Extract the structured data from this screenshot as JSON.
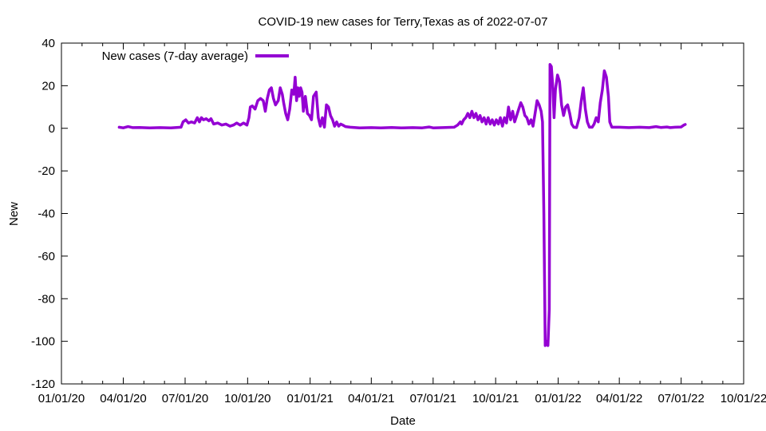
{
  "chart_data": {
    "type": "line",
    "title": "COVID-19 new cases for Terry,Texas as of 2022-07-07",
    "xlabel": "Date",
    "ylabel": "New",
    "xlim": [
      "2020-01-01",
      "2022-10-01"
    ],
    "ylim": [
      -120,
      40
    ],
    "x_ticks": [
      "2020-01-01",
      "2020-04-01",
      "2020-07-01",
      "2020-10-01",
      "2021-01-01",
      "2021-04-01",
      "2021-07-01",
      "2021-10-01",
      "2022-01-01",
      "2022-04-01",
      "2022-07-01",
      "2022-10-01"
    ],
    "x_tick_labels": [
      "01/01/20",
      "04/01/20",
      "07/01/20",
      "10/01/20",
      "01/01/21",
      "04/01/21",
      "07/01/21",
      "10/01/21",
      "01/01/22",
      "04/01/22",
      "07/01/22",
      "10/01/22"
    ],
    "y_ticks": [
      40,
      20,
      0,
      -20,
      -40,
      -60,
      -80,
      -100,
      -120
    ],
    "y_tick_labels": [
      "40",
      "20",
      "0",
      "-20",
      "-40",
      "-60",
      "-80",
      "-100",
      "-120"
    ],
    "grid": false,
    "legend": "top-left",
    "series": [
      {
        "name": "New cases (7-day average)",
        "color": "#9400d3",
        "points": [
          [
            "2020-03-26",
            0.5
          ],
          [
            "2020-04-01",
            0.2
          ],
          [
            "2020-04-08",
            0.8
          ],
          [
            "2020-04-15",
            0.3
          ],
          [
            "2020-04-25",
            0.4
          ],
          [
            "2020-05-10",
            0.2
          ],
          [
            "2020-05-25",
            0.3
          ],
          [
            "2020-06-10",
            0.2
          ],
          [
            "2020-06-25",
            0.5
          ],
          [
            "2020-06-28",
            3
          ],
          [
            "2020-07-02",
            4
          ],
          [
            "2020-07-06",
            2.5
          ],
          [
            "2020-07-10",
            3
          ],
          [
            "2020-07-15",
            2.5
          ],
          [
            "2020-07-19",
            5
          ],
          [
            "2020-07-22",
            3
          ],
          [
            "2020-07-25",
            5
          ],
          [
            "2020-07-28",
            4
          ],
          [
            "2020-08-01",
            4.5
          ],
          [
            "2020-08-05",
            3.5
          ],
          [
            "2020-08-08",
            4.5
          ],
          [
            "2020-08-12",
            2
          ],
          [
            "2020-08-18",
            2.5
          ],
          [
            "2020-08-24",
            1.5
          ],
          [
            "2020-08-30",
            2
          ],
          [
            "2020-09-05",
            1
          ],
          [
            "2020-09-10",
            1.5
          ],
          [
            "2020-09-15",
            2.5
          ],
          [
            "2020-09-20",
            1.5
          ],
          [
            "2020-09-25",
            2.5
          ],
          [
            "2020-09-30",
            1.5
          ],
          [
            "2020-10-03",
            5
          ],
          [
            "2020-10-05",
            10
          ],
          [
            "2020-10-08",
            10.5
          ],
          [
            "2020-10-12",
            9
          ],
          [
            "2020-10-16",
            13
          ],
          [
            "2020-10-20",
            14
          ],
          [
            "2020-10-24",
            13
          ],
          [
            "2020-10-27",
            8
          ],
          [
            "2020-10-30",
            14
          ],
          [
            "2020-11-02",
            18
          ],
          [
            "2020-11-05",
            19
          ],
          [
            "2020-11-08",
            14
          ],
          [
            "2020-11-11",
            11
          ],
          [
            "2020-11-15",
            13
          ],
          [
            "2020-11-18",
            19
          ],
          [
            "2020-11-21",
            16
          ],
          [
            "2020-11-23",
            12
          ],
          [
            "2020-11-26",
            7
          ],
          [
            "2020-11-29",
            4
          ],
          [
            "2020-12-02",
            9
          ],
          [
            "2020-12-05",
            18
          ],
          [
            "2020-12-08",
            16
          ],
          [
            "2020-12-10",
            24
          ],
          [
            "2020-12-12",
            13
          ],
          [
            "2020-12-14",
            19
          ],
          [
            "2020-12-16",
            15
          ],
          [
            "2020-12-18",
            19
          ],
          [
            "2020-12-20",
            17
          ],
          [
            "2020-12-22",
            8
          ],
          [
            "2020-12-25",
            15
          ],
          [
            "2020-12-28",
            7
          ],
          [
            "2020-12-31",
            6
          ],
          [
            "2021-01-03",
            4
          ],
          [
            "2021-01-06",
            15
          ],
          [
            "2021-01-10",
            17
          ],
          [
            "2021-01-13",
            5
          ],
          [
            "2021-01-16",
            1
          ],
          [
            "2021-01-19",
            5
          ],
          [
            "2021-01-22",
            0.5
          ],
          [
            "2021-01-25",
            11
          ],
          [
            "2021-01-28",
            10
          ],
          [
            "2021-01-31",
            6
          ],
          [
            "2021-02-03",
            4
          ],
          [
            "2021-02-06",
            1
          ],
          [
            "2021-02-09",
            3
          ],
          [
            "2021-02-12",
            1
          ],
          [
            "2021-02-15",
            2
          ],
          [
            "2021-02-18",
            1.5
          ],
          [
            "2021-02-22",
            0.8
          ],
          [
            "2021-03-01",
            0.5
          ],
          [
            "2021-03-15",
            0.2
          ],
          [
            "2021-04-01",
            0.3
          ],
          [
            "2021-04-15",
            0.2
          ],
          [
            "2021-05-01",
            0.4
          ],
          [
            "2021-05-15",
            0.2
          ],
          [
            "2021-06-01",
            0.3
          ],
          [
            "2021-06-15",
            0.2
          ],
          [
            "2021-06-25",
            0.6
          ],
          [
            "2021-07-01",
            0.2
          ],
          [
            "2021-07-15",
            0.3
          ],
          [
            "2021-08-01",
            0.5
          ],
          [
            "2021-08-06",
            1.5
          ],
          [
            "2021-08-10",
            3
          ],
          [
            "2021-08-12",
            2
          ],
          [
            "2021-08-15",
            4
          ],
          [
            "2021-08-18",
            5
          ],
          [
            "2021-08-21",
            7
          ],
          [
            "2021-08-24",
            5
          ],
          [
            "2021-08-27",
            8
          ],
          [
            "2021-08-30",
            5
          ],
          [
            "2021-09-02",
            7
          ],
          [
            "2021-09-05",
            4
          ],
          [
            "2021-09-08",
            6
          ],
          [
            "2021-09-11",
            3
          ],
          [
            "2021-09-14",
            5
          ],
          [
            "2021-09-17",
            2
          ],
          [
            "2021-09-20",
            5
          ],
          [
            "2021-09-23",
            2
          ],
          [
            "2021-09-26",
            4
          ],
          [
            "2021-09-29",
            1.5
          ],
          [
            "2021-10-02",
            4
          ],
          [
            "2021-10-05",
            2
          ],
          [
            "2021-10-08",
            5
          ],
          [
            "2021-10-11",
            1
          ],
          [
            "2021-10-14",
            5
          ],
          [
            "2021-10-17",
            2.5
          ],
          [
            "2021-10-20",
            10
          ],
          [
            "2021-10-23",
            4
          ],
          [
            "2021-10-26",
            8
          ],
          [
            "2021-10-29",
            3
          ],
          [
            "2021-11-01",
            6
          ],
          [
            "2021-11-04",
            9
          ],
          [
            "2021-11-07",
            12
          ],
          [
            "2021-11-10",
            10
          ],
          [
            "2021-11-13",
            6
          ],
          [
            "2021-11-16",
            5
          ],
          [
            "2021-11-19",
            2
          ],
          [
            "2021-11-22",
            4
          ],
          [
            "2021-11-25",
            1
          ],
          [
            "2021-11-28",
            7
          ],
          [
            "2021-12-01",
            13
          ],
          [
            "2021-12-04",
            11
          ],
          [
            "2021-12-07",
            8
          ],
          [
            "2021-12-09",
            3
          ],
          [
            "2021-12-11",
            -40
          ],
          [
            "2021-12-13",
            -102
          ],
          [
            "2021-12-15",
            -100
          ],
          [
            "2021-12-17",
            -102
          ],
          [
            "2021-12-19",
            -85
          ],
          [
            "2021-12-20",
            30
          ],
          [
            "2021-12-22",
            29
          ],
          [
            "2021-12-24",
            20
          ],
          [
            "2021-12-26",
            5
          ],
          [
            "2021-12-28",
            18
          ],
          [
            "2021-12-31",
            25
          ],
          [
            "2022-01-03",
            22
          ],
          [
            "2022-01-06",
            11
          ],
          [
            "2022-01-09",
            6
          ],
          [
            "2022-01-12",
            10
          ],
          [
            "2022-01-15",
            11
          ],
          [
            "2022-01-18",
            7
          ],
          [
            "2022-01-21",
            2
          ],
          [
            "2022-01-24",
            0.5
          ],
          [
            "2022-01-28",
            0.3
          ],
          [
            "2022-02-01",
            5
          ],
          [
            "2022-02-04",
            13
          ],
          [
            "2022-02-07",
            19
          ],
          [
            "2022-02-10",
            9
          ],
          [
            "2022-02-13",
            3
          ],
          [
            "2022-02-16",
            0.5
          ],
          [
            "2022-02-20",
            0.5
          ],
          [
            "2022-02-23",
            2
          ],
          [
            "2022-02-26",
            5
          ],
          [
            "2022-03-01",
            3
          ],
          [
            "2022-03-04",
            12
          ],
          [
            "2022-03-07",
            18
          ],
          [
            "2022-03-10",
            27
          ],
          [
            "2022-03-13",
            24
          ],
          [
            "2022-03-16",
            15
          ],
          [
            "2022-03-18",
            3
          ],
          [
            "2022-03-21",
            0.5
          ],
          [
            "2022-04-01",
            0.5
          ],
          [
            "2022-04-15",
            0.3
          ],
          [
            "2022-05-01",
            0.5
          ],
          [
            "2022-05-15",
            0.3
          ],
          [
            "2022-05-25",
            0.8
          ],
          [
            "2022-06-01",
            0.4
          ],
          [
            "2022-06-10",
            0.6
          ],
          [
            "2022-06-15",
            0.3
          ],
          [
            "2022-06-22",
            0.5
          ],
          [
            "2022-07-01",
            0.6
          ],
          [
            "2022-07-05",
            1.5
          ],
          [
            "2022-07-07",
            1.8
          ]
        ]
      }
    ]
  }
}
